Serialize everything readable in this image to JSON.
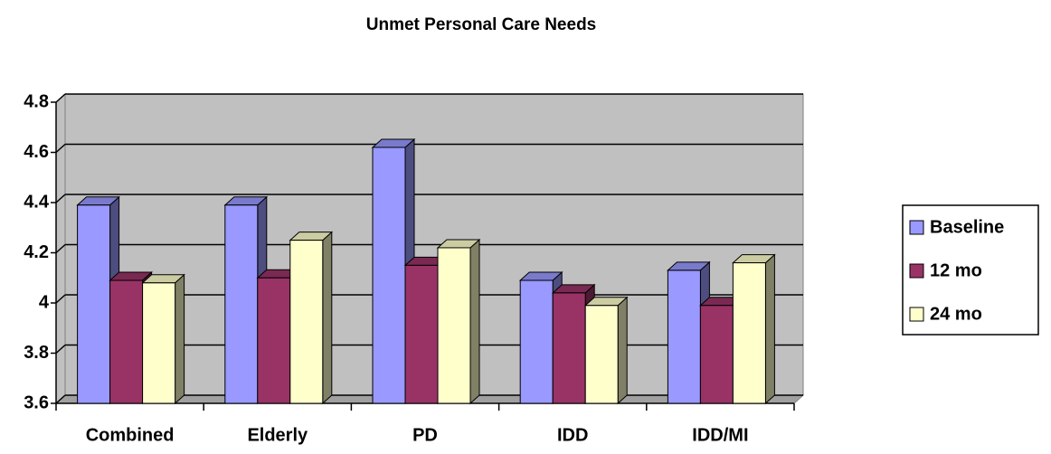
{
  "chart_data": {
    "type": "bar",
    "title": "Unmet Personal Care Needs",
    "categories": [
      "Combined",
      "Elderly",
      "PD",
      "IDD",
      "IDD/MI"
    ],
    "series": [
      {
        "name": "Baseline",
        "color": "#9999ff",
        "values": [
          4.39,
          4.39,
          4.62,
          4.09,
          4.13
        ]
      },
      {
        "name": "12 mo",
        "color": "#993366",
        "values": [
          4.09,
          4.1,
          4.15,
          4.04,
          3.99
        ]
      },
      {
        "name": "24 mo",
        "color": "#ffffcc",
        "values": [
          4.08,
          4.25,
          4.22,
          3.99,
          4.16
        ]
      }
    ],
    "ylim": [
      3.6,
      4.8
    ],
    "yticks": [
      3.6,
      3.8,
      4,
      4.2,
      4.4,
      4.6,
      4.8
    ],
    "grid": true,
    "legend": "right"
  }
}
